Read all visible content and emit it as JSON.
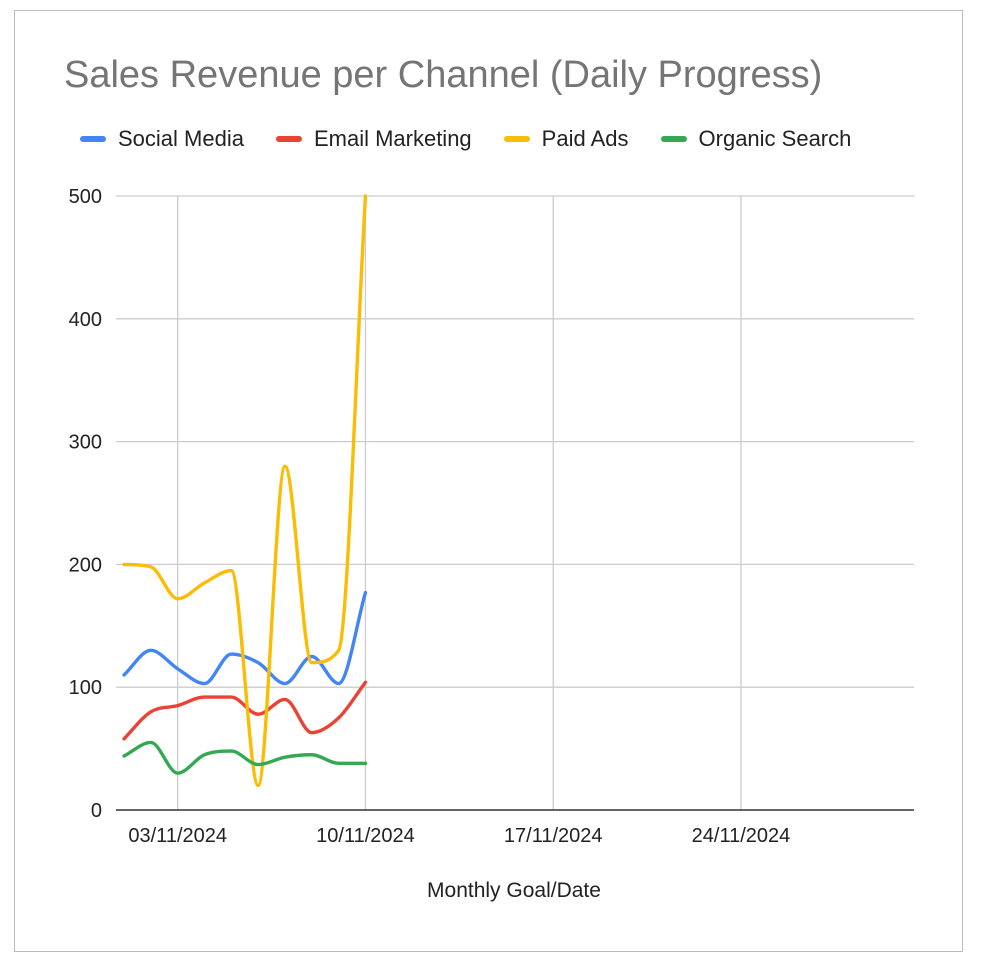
{
  "chart_data": {
    "type": "line",
    "title": "Sales Revenue per Channel (Daily Progress)",
    "xlabel": "Monthly Goal/Date",
    "ylabel": "",
    "x": [
      "2024-11-01",
      "2024-11-02",
      "2024-11-03",
      "2024-11-04",
      "2024-11-05",
      "2024-11-06",
      "2024-11-07",
      "2024-11-08",
      "2024-11-09",
      "2024-11-10"
    ],
    "xlim": [
      "2024-11-01",
      "2024-11-30"
    ],
    "xticks": [
      "03/11/2024",
      "10/11/2024",
      "17/11/2024",
      "24/11/2024"
    ],
    "ylim": [
      0,
      500
    ],
    "yticks": [
      0,
      100,
      200,
      300,
      400,
      500
    ],
    "grid": true,
    "legend_position": "top",
    "smooth": true,
    "series": [
      {
        "name": "Social Media",
        "color": "#4285F4",
        "values": [
          110,
          130,
          115,
          103,
          127,
          120,
          103,
          125,
          103,
          177
        ]
      },
      {
        "name": "Email Marketing",
        "color": "#EA4335",
        "values": [
          58,
          80,
          85,
          92,
          92,
          78,
          90,
          63,
          75,
          104
        ]
      },
      {
        "name": "Paid Ads",
        "color": "#FBBC04",
        "values": [
          200,
          198,
          172,
          185,
          195,
          20,
          280,
          120,
          130,
          500
        ]
      },
      {
        "name": "Organic Search",
        "color": "#34A853",
        "values": [
          44,
          55,
          30,
          45,
          48,
          37,
          43,
          45,
          38,
          38
        ]
      }
    ]
  }
}
